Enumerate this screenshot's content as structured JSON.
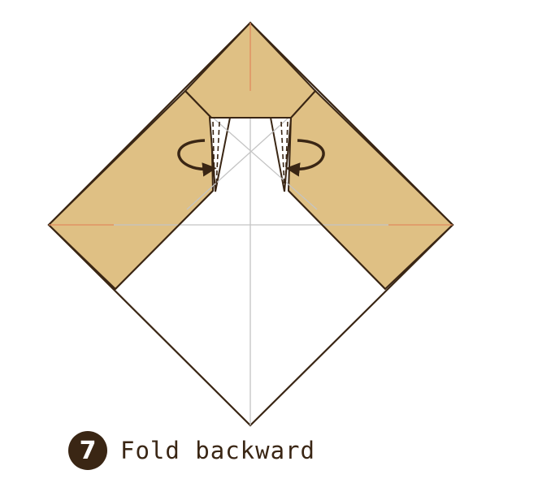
{
  "step": {
    "number": "7",
    "instruction": "Fold backward"
  },
  "colors": {
    "paper_colored": "#dfc084",
    "paper_white": "#ffffff",
    "outline": "#3a2614",
    "crease_gray": "#c4c4c4",
    "crease_orange": "#e08a5e",
    "arrow": "#3a2614",
    "badge_bg": "#3a2614",
    "text": "#3a2614"
  },
  "icons": {
    "fold_arrow_left": "curved-arrow-fold-back-icon",
    "fold_arrow_right": "curved-arrow-fold-back-icon"
  }
}
